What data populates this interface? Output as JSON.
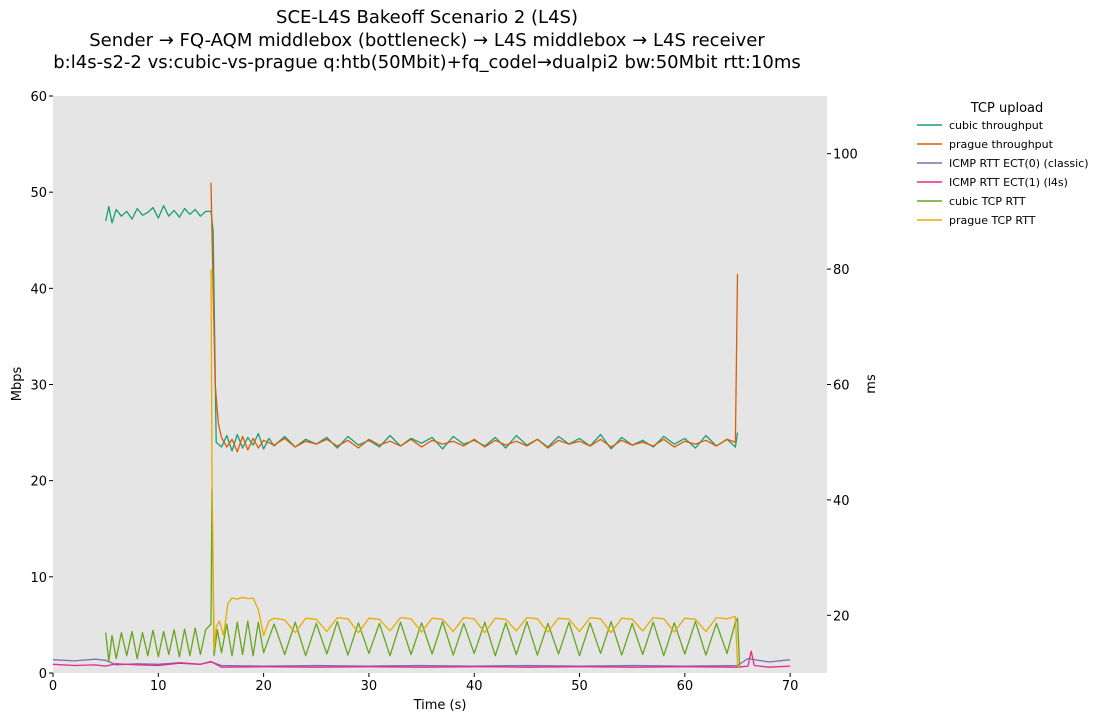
{
  "chart_data": {
    "type": "line",
    "title": "SCE-L4S Bakeoff Scenario 2 (L4S)",
    "subtitle_lines": [
      "Sender → FQ-AQM middlebox (bottleneck) → L4S middlebox → L4S receiver",
      "b:l4s-s2-2 vs:cubic-vs-prague q:htb(50Mbit)+fq_codel→dualpi2 bw:50Mbit rtt:10ms"
    ],
    "xlabel": "Time (s)",
    "ylabel_left": "Mbps",
    "ylabel_right": "ms",
    "xlim": [
      0,
      73.5
    ],
    "ylim_left": [
      0,
      60
    ],
    "ylim_right": [
      10,
      110
    ],
    "xticks": [
      0,
      10,
      20,
      30,
      40,
      50,
      60,
      70
    ],
    "yticks_left": [
      0,
      10,
      20,
      30,
      40,
      50,
      60
    ],
    "yticks_right": [
      20,
      40,
      60,
      80,
      100
    ],
    "grid": false,
    "legend": {
      "title": "TCP upload",
      "placement": "outside-right-top"
    },
    "series": [
      {
        "name": "cubic throughput",
        "axis": "left",
        "color": "#1b9e77",
        "x": [
          5.0,
          5.3,
          5.6,
          6.0,
          6.5,
          7.0,
          7.5,
          8.0,
          8.5,
          9.0,
          9.5,
          10.0,
          10.5,
          11.0,
          11.5,
          12.0,
          12.5,
          13.0,
          13.5,
          14.0,
          14.5,
          15.0,
          15.2,
          15.5,
          16.0,
          16.5,
          17.0,
          17.5,
          18.0,
          18.5,
          19.0,
          19.5,
          20.0,
          20.5,
          21.0,
          22.0,
          23.0,
          24.0,
          25.0,
          26.0,
          27.0,
          28.0,
          29.0,
          30.0,
          31.0,
          32.0,
          33.0,
          34.0,
          35.0,
          36.0,
          37.0,
          38.0,
          39.0,
          40.0,
          41.0,
          42.0,
          43.0,
          44.0,
          45.0,
          46.0,
          47.0,
          48.0,
          49.0,
          50.0,
          51.0,
          52.0,
          53.0,
          54.0,
          55.0,
          56.0,
          57.0,
          58.0,
          59.0,
          60.0,
          61.0,
          62.0,
          63.0,
          64.0,
          64.8,
          65.0
        ],
        "values": [
          47.0,
          48.5,
          46.8,
          48.2,
          47.5,
          48.0,
          47.2,
          48.3,
          47.6,
          47.9,
          48.4,
          47.3,
          48.6,
          47.5,
          48.1,
          47.4,
          48.3,
          47.7,
          48.2,
          47.5,
          48.0,
          48.0,
          46.0,
          24.0,
          23.5,
          24.7,
          23.1,
          24.8,
          23.4,
          24.5,
          23.7,
          24.9,
          23.3,
          24.4,
          23.6,
          24.6,
          23.5,
          24.3,
          23.8,
          24.5,
          23.4,
          24.6,
          23.7,
          24.2,
          23.5,
          24.7,
          23.6,
          24.4,
          23.9,
          24.5,
          23.3,
          24.6,
          23.8,
          24.2,
          23.6,
          24.5,
          23.4,
          24.7,
          23.7,
          24.3,
          23.5,
          24.6,
          23.8,
          24.4,
          23.6,
          24.8,
          23.3,
          24.5,
          23.7,
          24.2,
          23.5,
          24.6,
          23.8,
          24.4,
          23.4,
          24.7,
          23.6,
          24.3,
          23.5,
          25.0
        ]
      },
      {
        "name": "prague throughput",
        "axis": "left",
        "color": "#d95f02",
        "x": [
          15.0,
          15.2,
          15.4,
          15.7,
          16.0,
          16.5,
          17.0,
          17.5,
          18.0,
          18.5,
          19.0,
          19.5,
          20.0,
          21.0,
          22.0,
          23.0,
          24.0,
          25.0,
          26.0,
          27.0,
          28.0,
          29.0,
          30.0,
          31.0,
          32.0,
          33.0,
          34.0,
          35.0,
          36.0,
          37.0,
          38.0,
          39.0,
          40.0,
          41.0,
          42.0,
          43.0,
          44.0,
          45.0,
          46.0,
          47.0,
          48.0,
          49.0,
          50.0,
          51.0,
          52.0,
          53.0,
          54.0,
          55.0,
          56.0,
          57.0,
          58.0,
          59.0,
          60.0,
          61.0,
          62.0,
          63.0,
          64.0,
          64.8,
          65.0
        ],
        "values": [
          51.0,
          40.0,
          30.0,
          26.0,
          24.5,
          23.5,
          24.3,
          23.0,
          24.6,
          23.2,
          24.4,
          23.4,
          24.2,
          23.7,
          24.4,
          23.5,
          24.1,
          23.8,
          24.3,
          23.6,
          24.2,
          23.4,
          24.3,
          23.7,
          24.1,
          23.6,
          24.3,
          23.5,
          24.2,
          23.8,
          24.1,
          23.6,
          24.3,
          23.5,
          24.2,
          23.7,
          24.1,
          23.6,
          24.3,
          23.4,
          24.2,
          23.8,
          24.1,
          23.6,
          24.3,
          23.5,
          24.2,
          23.7,
          24.0,
          23.6,
          24.3,
          23.5,
          24.1,
          23.8,
          24.2,
          23.6,
          24.3,
          24.0,
          41.5
        ]
      },
      {
        "name": "ICMP RTT ECT(0) (classic)",
        "axis": "right",
        "color": "#7570b3",
        "x": [
          0,
          2,
          4,
          5,
          6,
          8,
          10,
          12,
          14,
          15,
          16,
          20,
          25,
          30,
          35,
          40,
          45,
          50,
          55,
          60,
          65,
          66,
          68,
          70
        ],
        "values": [
          12.3,
          12.1,
          12.4,
          12.2,
          11.4,
          11.6,
          11.5,
          11.8,
          11.5,
          11.9,
          11.3,
          11.2,
          11.3,
          11.2,
          11.3,
          11.2,
          11.3,
          11.2,
          11.3,
          11.2,
          11.3,
          12.5,
          11.9,
          12.3
        ]
      },
      {
        "name": "ICMP RTT ECT(1) (l4s)",
        "axis": "right",
        "color": "#e7298a",
        "x": [
          0,
          2,
          4,
          5,
          6,
          8,
          10,
          12,
          14,
          15,
          16,
          20,
          25,
          30,
          35,
          40,
          45,
          50,
          55,
          60,
          65,
          66,
          66.3,
          66.6,
          68,
          70
        ],
        "values": [
          11.5,
          11.3,
          11.4,
          11.2,
          11.6,
          11.4,
          11.3,
          11.7,
          11.5,
          12.0,
          11.0,
          11.1,
          11.0,
          11.1,
          11.0,
          11.1,
          11.0,
          11.1,
          11.0,
          11.1,
          11.0,
          11.2,
          13.8,
          11.3,
          11.0,
          11.2
        ]
      },
      {
        "name": "cubic TCP RTT",
        "axis": "right",
        "color": "#66a61e",
        "x": [
          5.0,
          5.3,
          5.6,
          6.0,
          6.5,
          7.0,
          7.5,
          8.0,
          8.5,
          9.0,
          9.5,
          10.0,
          10.5,
          11.0,
          11.5,
          12.0,
          12.5,
          13.0,
          13.5,
          14.0,
          14.5,
          15.0,
          15.1,
          15.3,
          15.6,
          16.0,
          16.5,
          17.0,
          17.5,
          18.0,
          18.5,
          19.0,
          19.5,
          20.0,
          21.0,
          22.0,
          23.0,
          24.0,
          25.0,
          26.0,
          27.0,
          28.0,
          29.0,
          30.0,
          31.0,
          32.0,
          33.0,
          34.0,
          35.0,
          36.0,
          37.0,
          38.0,
          39.0,
          40.0,
          41.0,
          42.0,
          43.0,
          44.0,
          45.0,
          46.0,
          47.0,
          48.0,
          49.0,
          50.0,
          51.0,
          52.0,
          53.0,
          54.0,
          55.0,
          56.0,
          57.0,
          58.0,
          59.0,
          60.0,
          61.0,
          62.0,
          63.0,
          64.0,
          64.8,
          65.0,
          65.2
        ],
        "values": [
          17.0,
          12.0,
          16.5,
          12.5,
          17.0,
          13.0,
          17.2,
          12.5,
          17.0,
          13.0,
          17.4,
          12.8,
          17.2,
          13.2,
          17.5,
          12.8,
          17.6,
          13.0,
          17.8,
          13.2,
          17.5,
          18.5,
          42.0,
          13.0,
          17.5,
          13.5,
          18.5,
          13.0,
          18.8,
          13.2,
          19.0,
          13.0,
          18.8,
          13.5,
          18.5,
          13.2,
          18.8,
          13.0,
          18.6,
          13.3,
          18.9,
          13.1,
          18.7,
          13.4,
          18.6,
          13.0,
          18.8,
          13.2,
          18.7,
          13.3,
          18.9,
          13.1,
          18.6,
          13.4,
          18.8,
          13.0,
          18.7,
          13.2,
          18.9,
          13.1,
          18.6,
          13.3,
          18.8,
          13.0,
          18.7,
          13.4,
          18.9,
          13.1,
          18.6,
          13.2,
          18.8,
          13.0,
          18.7,
          13.3,
          18.9,
          13.1,
          18.6,
          13.4,
          18.8,
          19.5,
          11.2
        ]
      },
      {
        "name": "prague TCP RTT",
        "axis": "right",
        "color": "#e6ab02",
        "x": [
          15.0,
          15.1,
          15.3,
          15.5,
          15.8,
          16.2,
          16.6,
          17.0,
          17.5,
          18.0,
          18.5,
          19.0,
          19.5,
          20.0,
          20.5,
          21.0,
          22.0,
          23.0,
          24.0,
          25.0,
          26.0,
          27.0,
          28.0,
          29.0,
          30.0,
          31.0,
          32.0,
          33.0,
          34.0,
          35.0,
          36.0,
          37.0,
          38.0,
          39.0,
          40.0,
          41.0,
          42.0,
          43.0,
          44.0,
          45.0,
          46.0,
          47.0,
          48.0,
          49.0,
          50.0,
          51.0,
          52.0,
          53.0,
          54.0,
          55.0,
          56.0,
          57.0,
          58.0,
          59.0,
          60.0,
          61.0,
          62.0,
          63.0,
          64.0,
          64.8,
          65.0,
          65.2
        ],
        "values": [
          80.0,
          45.0,
          14.0,
          18.0,
          19.0,
          16.5,
          22.0,
          23.0,
          22.8,
          23.1,
          22.9,
          23.0,
          21.0,
          16.5,
          19.0,
          19.5,
          19.2,
          17.0,
          19.5,
          19.3,
          17.2,
          19.6,
          19.4,
          17.0,
          19.5,
          19.3,
          17.3,
          19.6,
          19.4,
          17.1,
          19.5,
          19.3,
          17.2,
          19.6,
          19.4,
          17.0,
          19.5,
          19.3,
          17.3,
          19.6,
          19.4,
          17.1,
          19.5,
          19.3,
          17.2,
          19.6,
          19.4,
          17.0,
          19.5,
          19.3,
          17.3,
          19.6,
          19.4,
          17.1,
          19.5,
          19.3,
          17.2,
          19.6,
          19.4,
          19.8,
          11.5,
          11.0
        ]
      }
    ]
  }
}
